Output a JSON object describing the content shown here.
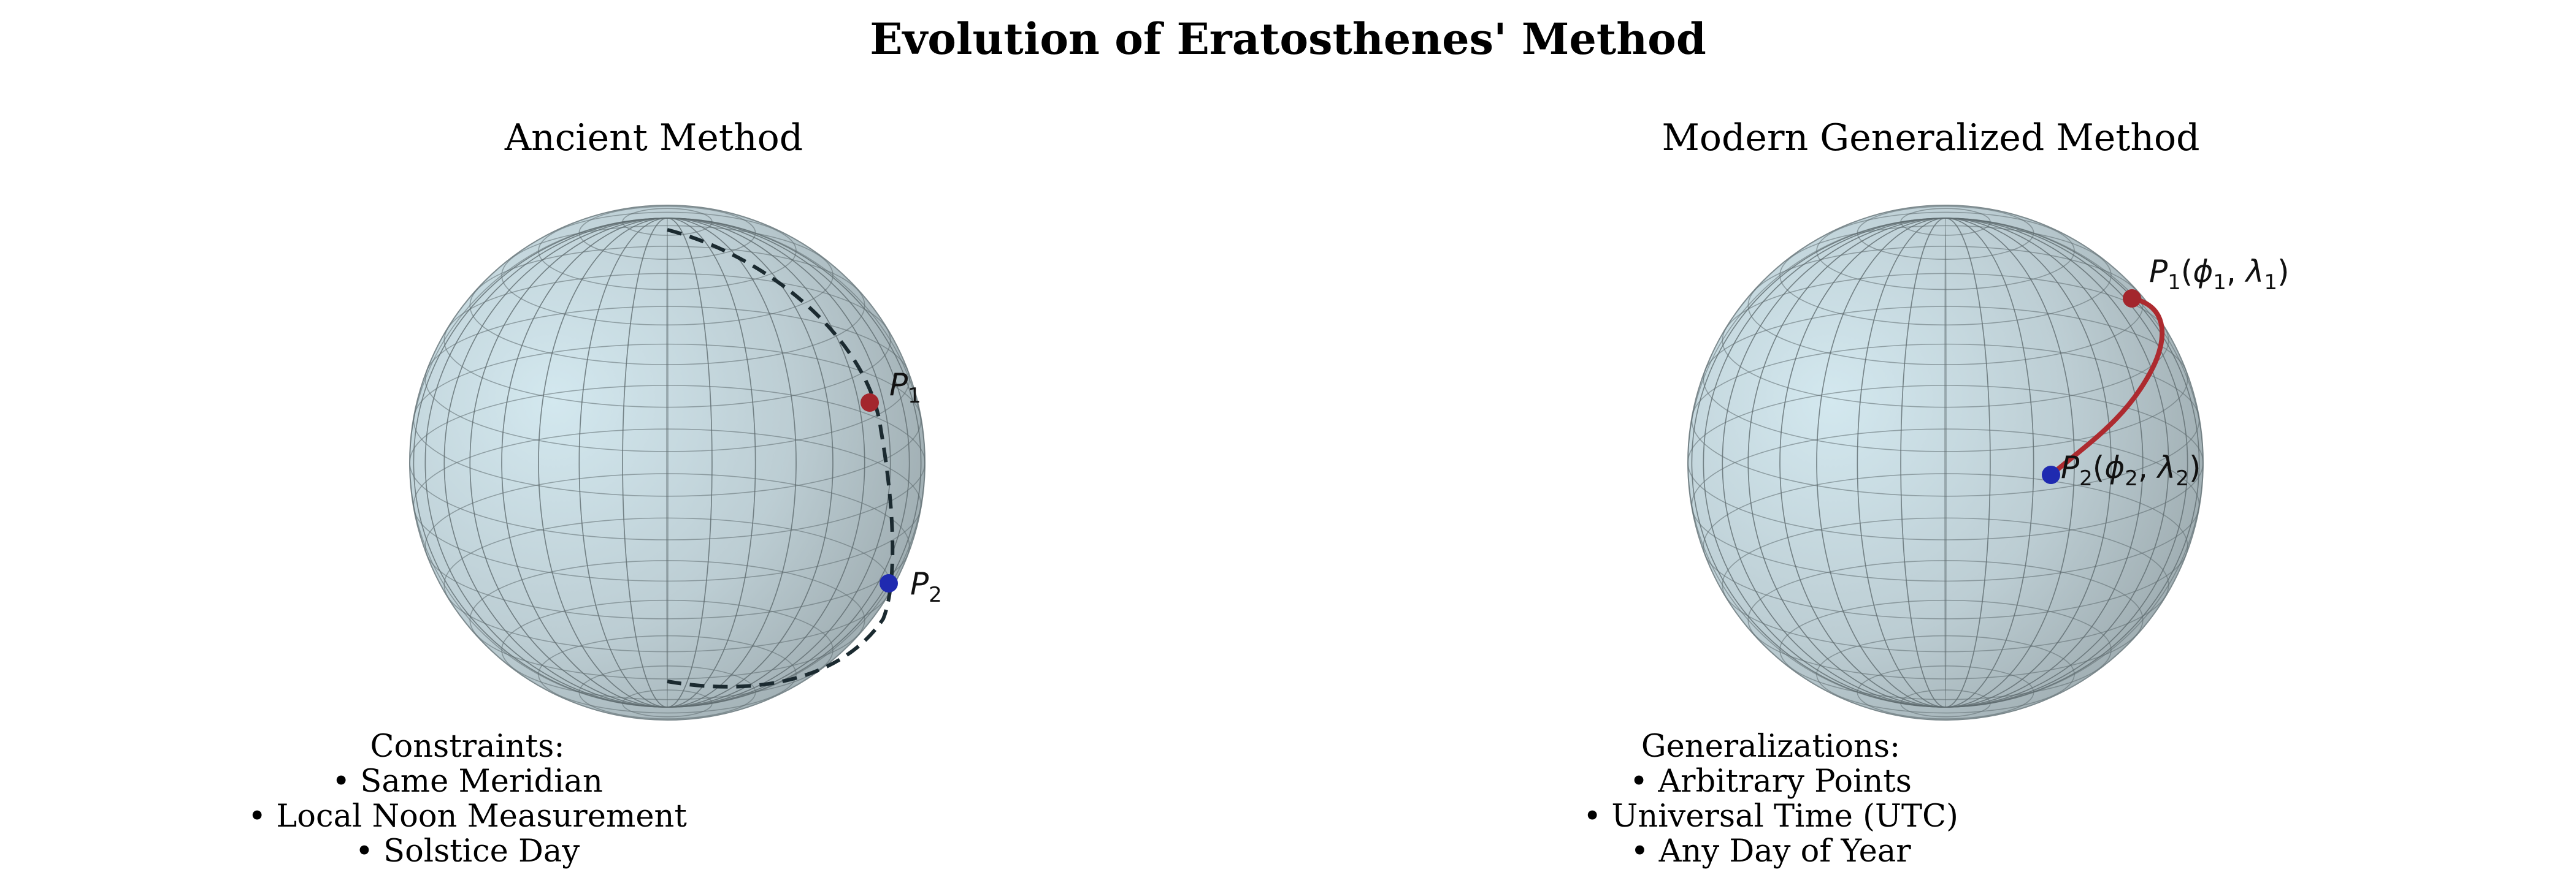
{
  "title": "Evolution of Eratosthenes' Method",
  "panels": [
    {
      "title": "Ancient Method",
      "points": [
        {
          "name": "P1",
          "label_main": "P",
          "label_sub": "1",
          "color": "#a3262d"
        },
        {
          "name": "P2",
          "label_main": "P",
          "label_sub": "2",
          "color": "#1f2ab0"
        }
      ],
      "path_style": "dashed",
      "path_color": "#1b2a30",
      "notes_heading": "Constraints:",
      "notes": [
        "• Same Meridian",
        "• Local Noon Measurement",
        "• Solstice Day"
      ]
    },
    {
      "title": "Modern Generalized Method",
      "points": [
        {
          "name": "P1",
          "label_main": "P",
          "label_sub": "1",
          "label_args": [
            "ϕ",
            "1",
            "λ",
            "1"
          ],
          "color": "#a3262d"
        },
        {
          "name": "P2",
          "label_main": "P",
          "label_sub": "2",
          "label_args": [
            "ϕ",
            "2",
            "λ",
            "2"
          ],
          "color": "#1f2ab0"
        }
      ],
      "path_style": "solid",
      "path_color": "#ad2a2f",
      "notes_heading": "Generalizations:",
      "notes": [
        "• Arbitrary Points",
        "• Universal Time (UTC)",
        "• Any Day of Year"
      ]
    }
  ],
  "colors": {
    "sphere_light": "#cfe3ea",
    "sphere_dark": "#9aa8ac",
    "grid": "#5e6b70"
  }
}
